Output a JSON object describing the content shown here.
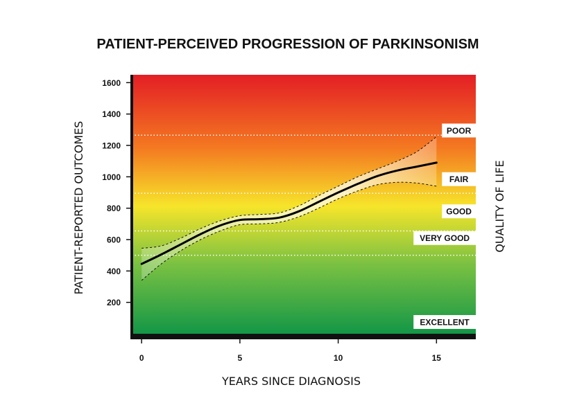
{
  "chart_data": {
    "type": "line",
    "title": "PATIENT-PERCEIVED PROGRESSION OF PARKINSONISM",
    "xlabel": "YEARS SINCE DIAGNOSIS",
    "ylabel": "PATIENT-REPORTED OUTCOMES",
    "y2label": "QUALITY OF LIFE",
    "xlim": [
      -0.5,
      17
    ],
    "ylim": [
      0,
      1650
    ],
    "x_ticks": [
      0,
      5,
      10,
      15
    ],
    "y_ticks": [
      200,
      400,
      600,
      800,
      1000,
      1200,
      1400,
      1600
    ],
    "grid": false,
    "background_gradient": [
      "#e31e25",
      "#f47a21",
      "#f6e52a",
      "#7ac142",
      "#0d9447"
    ],
    "line_color": "#000000",
    "series": [
      {
        "x": [
          0,
          1,
          2,
          3,
          4,
          5,
          6,
          7,
          8,
          9,
          10,
          11,
          12,
          13,
          14,
          15
        ],
        "values": [
          445,
          505,
          570,
          635,
          690,
          725,
          730,
          740,
          780,
          840,
          900,
          955,
          1005,
          1040,
          1065,
          1090
        ]
      }
    ],
    "interval_upper": {
      "x": [
        0,
        1,
        2,
        3,
        4,
        5,
        6,
        7,
        8,
        9,
        10,
        11,
        12,
        13,
        14,
        15
      ],
      "values": [
        545,
        560,
        610,
        670,
        720,
        752,
        760,
        770,
        815,
        880,
        940,
        1000,
        1050,
        1100,
        1160,
        1255
      ]
    },
    "interval_lower": {
      "x": [
        0,
        1,
        2,
        3,
        4,
        5,
        6,
        7,
        8,
        9,
        10,
        11,
        12,
        13,
        14,
        15
      ],
      "values": [
        340,
        445,
        530,
        600,
        655,
        695,
        700,
        710,
        745,
        800,
        860,
        910,
        950,
        965,
        960,
        940
      ]
    },
    "qol_bands": [
      {
        "label": "POOR",
        "threshold": 1265,
        "label_y": 1295
      },
      {
        "label": "FAIR",
        "threshold": 895,
        "label_y": 985
      },
      {
        "label": "GOOD",
        "threshold": 655,
        "label_y": 780
      },
      {
        "label": "VERY GOOD",
        "threshold": 500,
        "label_y": 610
      },
      {
        "label": "EXCELLENT",
        "threshold": 0,
        "label_y": 75
      }
    ]
  }
}
